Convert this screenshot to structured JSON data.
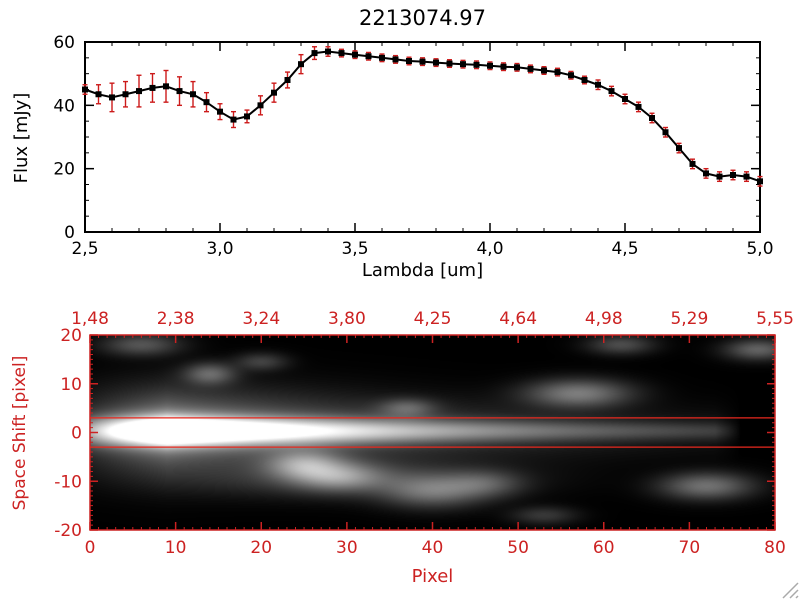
{
  "window": {
    "background": "#ffffff"
  },
  "accent_red": "#cc2222",
  "error_bar_color": "#cc1a1a",
  "aperture_line_color": "#e8281e",
  "chart_data": [
    {
      "type": "line",
      "title": "2213074.97",
      "xlabel": "Lambda [um]",
      "ylabel": "Flux [mJy]",
      "xlim": [
        2.5,
        5.0
      ],
      "ylim": [
        0,
        60
      ],
      "grid": false,
      "marker": "square",
      "line_color": "#000000",
      "x_tick_values": [
        2.5,
        3.0,
        3.5,
        4.0,
        4.5,
        5.0
      ],
      "x_tick_labels": [
        "2,5",
        "3,0",
        "3,5",
        "4,0",
        "4,5",
        "5,0"
      ],
      "x_minor": 0.1,
      "y_tick_values": [
        0,
        20,
        40,
        60
      ],
      "y_tick_labels": [
        "0",
        "20",
        "40",
        "60"
      ],
      "y_minor": 5,
      "x": [
        2.5,
        2.55,
        2.6,
        2.65,
        2.7,
        2.75,
        2.8,
        2.85,
        2.9,
        2.95,
        3.0,
        3.05,
        3.1,
        3.15,
        3.2,
        3.25,
        3.3,
        3.35,
        3.4,
        3.45,
        3.5,
        3.55,
        3.6,
        3.65,
        3.7,
        3.75,
        3.8,
        3.85,
        3.9,
        3.95,
        4.0,
        4.05,
        4.1,
        4.15,
        4.2,
        4.25,
        4.3,
        4.35,
        4.4,
        4.45,
        4.5,
        4.55,
        4.6,
        4.65,
        4.7,
        4.75,
        4.8,
        4.85,
        4.9,
        4.95,
        5.0
      ],
      "y": [
        45,
        43.5,
        42.5,
        43.5,
        44.5,
        45.5,
        46,
        44.5,
        43.5,
        41,
        38,
        35.5,
        36.5,
        40,
        44,
        48,
        53,
        56.5,
        57,
        56.5,
        56,
        55.5,
        55,
        54.5,
        54,
        53.8,
        53.5,
        53.2,
        53,
        52.8,
        52.5,
        52.2,
        52,
        51.5,
        51,
        50.5,
        49.5,
        48,
        46.5,
        44.5,
        42,
        39.5,
        36,
        31.5,
        26.5,
        21.5,
        18.5,
        17.5,
        18,
        17.5,
        16
      ],
      "yerr": [
        1.5,
        3,
        4.5,
        4,
        5,
        4.5,
        5,
        4.5,
        4,
        3,
        2.5,
        2.5,
        2,
        3,
        3,
        2.5,
        3,
        2,
        1.5,
        1.2,
        1.2,
        1.2,
        1.2,
        1.2,
        1.2,
        1.2,
        1.2,
        1.2,
        1.2,
        1.2,
        1.2,
        1.2,
        1.2,
        1.2,
        1.2,
        1.2,
        1.2,
        1.2,
        1.5,
        1.5,
        1.5,
        1.5,
        1.5,
        1.5,
        1.5,
        1.5,
        1.5,
        1.5,
        1.5,
        1.5,
        1.5
      ]
    },
    {
      "type": "heatmap",
      "xlabel": "Pixel",
      "ylabel": "Space Shift [pixel]",
      "xlim": [
        0,
        80
      ],
      "ylim": [
        -20,
        20
      ],
      "x_tick_values": [
        0,
        10,
        20,
        30,
        40,
        50,
        60,
        70,
        80
      ],
      "x_tick_labels": [
        "0",
        "10",
        "20",
        "30",
        "40",
        "50",
        "60",
        "70",
        "80"
      ],
      "y_tick_values": [
        -20,
        -10,
        0,
        10,
        20
      ],
      "y_tick_labels": [
        "-20",
        "-10",
        "0",
        "10",
        "20"
      ],
      "top_axis_tick_labels": [
        "1,48",
        "2,38",
        "3,24",
        "3,80",
        "4,25",
        "4,64",
        "4,98",
        "5,29",
        "5,55"
      ],
      "aperture_lines_y": [
        3,
        -3
      ],
      "trace": {
        "y_center": 0.3,
        "base_amp": 0.5,
        "peak_x": 9,
        "peak_amp": 1.6,
        "decay_scale": 26,
        "end_x": 73,
        "sigma0": 1.9,
        "sigma1": 1.2,
        "halo_frac": 0.3
      },
      "blobs": [
        {
          "x": 6,
          "y": 18,
          "sx": 3,
          "sy": 1.5,
          "amp": 0.25
        },
        {
          "x": 14,
          "y": 12,
          "sx": 2,
          "sy": 1.5,
          "amp": 0.32
        },
        {
          "x": 20,
          "y": 14.5,
          "sx": 2,
          "sy": 1.2,
          "amp": 0.18
        },
        {
          "x": 25,
          "y": -6.5,
          "sx": 3,
          "sy": 2,
          "amp": 0.45
        },
        {
          "x": 29,
          "y": -9,
          "sx": 3.5,
          "sy": 2,
          "amp": 0.4
        },
        {
          "x": 30,
          "y": -9.5,
          "sx": 12,
          "sy": 2.5,
          "amp": 0.16
        },
        {
          "x": 40,
          "y": -12,
          "sx": 4,
          "sy": 2.2,
          "amp": 0.35
        },
        {
          "x": 46,
          "y": -10.5,
          "sx": 3,
          "sy": 1.8,
          "amp": 0.22
        },
        {
          "x": 37,
          "y": 5,
          "sx": 2.2,
          "sy": 1.3,
          "amp": 0.26
        },
        {
          "x": 57,
          "y": 8,
          "sx": 4,
          "sy": 1.9,
          "amp": 0.4
        },
        {
          "x": 53,
          "y": -17,
          "sx": 2.5,
          "sy": 1.2,
          "amp": 0.15
        },
        {
          "x": 72,
          "y": -11,
          "sx": 3.5,
          "sy": 1.8,
          "amp": 0.36
        },
        {
          "x": 62,
          "y": 18,
          "sx": 2.5,
          "sy": 1.3,
          "amp": 0.22
        },
        {
          "x": 78,
          "y": 17,
          "sx": 2.5,
          "sy": 1.4,
          "amp": 0.3
        }
      ]
    }
  ]
}
